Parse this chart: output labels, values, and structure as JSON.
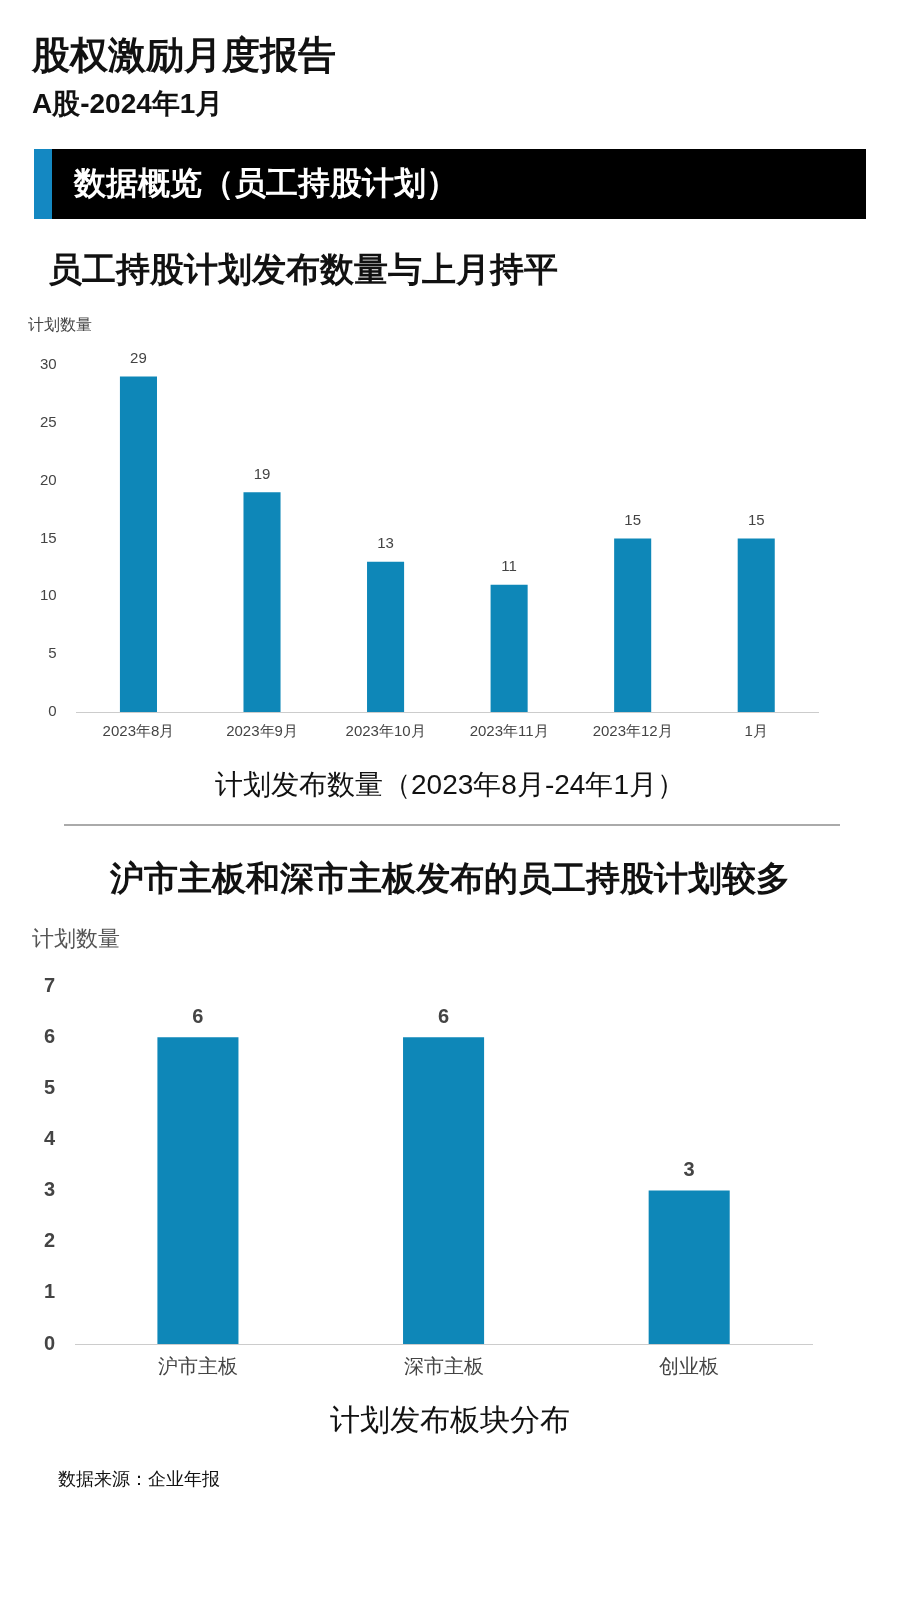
{
  "chart_data": [
    {
      "type": "bar",
      "title": "员工持股计划发布数量与上月持平",
      "ylabel": "计划数量",
      "xlabel": "计划发布数量（2023年8月-24年1月）",
      "categories": [
        "2023年8月",
        "2023年9月",
        "2023年10月",
        "2023年11月",
        "2023年12月",
        "1月"
      ],
      "values": [
        29,
        19,
        13,
        11,
        15,
        15
      ],
      "color": "#0e87b8",
      "ylim": [
        0,
        30
      ],
      "yticks": [
        0,
        5,
        10,
        15,
        20,
        25,
        30
      ],
      "data_labels": true,
      "annotations": [
        "股权激励月度报告",
        "A股-2024年1月",
        "数据概览（员工持股计划）"
      ]
    },
    {
      "type": "bar",
      "title": "沪市主板和深市主板发布的员工持股计划较多",
      "ylabel": "计划数量",
      "xlabel": "计划发布板块分布",
      "categories": [
        "沪市主板",
        "深市主板",
        "创业板"
      ],
      "values": [
        6,
        6,
        3
      ],
      "color": "#0e87b8",
      "ylim": [
        0,
        7
      ],
      "yticks": [
        0,
        1,
        2,
        3,
        4,
        5,
        6,
        7
      ],
      "data_labels": true,
      "annotations": [
        "数据来源：企业年报"
      ]
    }
  ]
}
